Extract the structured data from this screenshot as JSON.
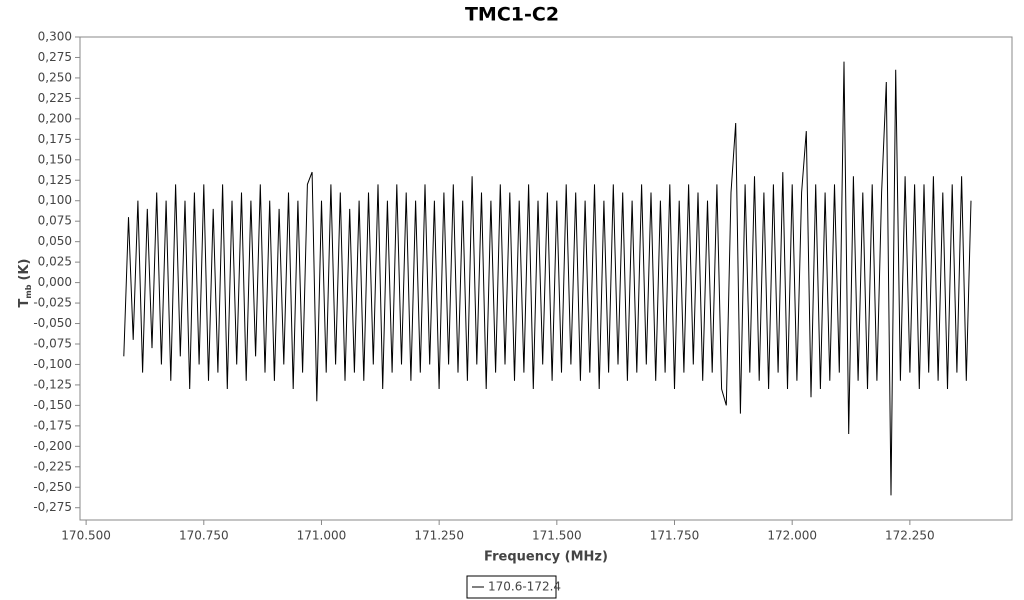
{
  "chart_data": {
    "type": "line",
    "title": "TMC1-C2",
    "x_label": "Frequency (MHz)",
    "y_label": {
      "symbol": "T",
      "subscript": "mb",
      "unit": "(K)"
    },
    "xlim": [
      170.487,
      172.467
    ],
    "ylim": [
      -0.29,
      0.3
    ],
    "xticks": [
      {
        "value": 170.5,
        "label": "170.500"
      },
      {
        "value": 170.75,
        "label": "170.750"
      },
      {
        "value": 171.0,
        "label": "171.000"
      },
      {
        "value": 171.25,
        "label": "171.250"
      },
      {
        "value": 171.5,
        "label": "171.500"
      },
      {
        "value": 171.75,
        "label": "171.750"
      },
      {
        "value": 172.0,
        "label": "172.000"
      },
      {
        "value": 172.25,
        "label": "172.250"
      }
    ],
    "yticks": [
      {
        "value": 0.3,
        "label": "0,300"
      },
      {
        "value": 0.275,
        "label": "0,275"
      },
      {
        "value": 0.25,
        "label": "0,250"
      },
      {
        "value": 0.225,
        "label": "0,225"
      },
      {
        "value": 0.2,
        "label": "0,200"
      },
      {
        "value": 0.175,
        "label": "0,175"
      },
      {
        "value": 0.15,
        "label": "0,150"
      },
      {
        "value": 0.125,
        "label": "0,125"
      },
      {
        "value": 0.1,
        "label": "0,100"
      },
      {
        "value": 0.075,
        "label": "0,075"
      },
      {
        "value": 0.05,
        "label": "0,050"
      },
      {
        "value": 0.025,
        "label": "0,025"
      },
      {
        "value": 0,
        "label": "0,000"
      },
      {
        "value": -0.025,
        "label": "-0,025"
      },
      {
        "value": -0.05,
        "label": "-0,050"
      },
      {
        "value": -0.075,
        "label": "-0,075"
      },
      {
        "value": -0.1,
        "label": "-0,100"
      },
      {
        "value": -0.125,
        "label": "-0,125"
      },
      {
        "value": -0.15,
        "label": "-0,150"
      },
      {
        "value": -0.175,
        "label": "-0,175"
      },
      {
        "value": -0.2,
        "label": "-0,200"
      },
      {
        "value": -0.225,
        "label": "-0,225"
      },
      {
        "value": -0.25,
        "label": "-0,250"
      },
      {
        "value": -0.275,
        "label": "-0,275"
      }
    ],
    "x": [
      170.58,
      170.59,
      170.6,
      170.61,
      170.62,
      170.63,
      170.64,
      170.65,
      170.66,
      170.67,
      170.68,
      170.69,
      170.7,
      170.71,
      170.72,
      170.73,
      170.74,
      170.75,
      170.76,
      170.77,
      170.78,
      170.79,
      170.8,
      170.81,
      170.82,
      170.83,
      170.84,
      170.85,
      170.86,
      170.87,
      170.88,
      170.89,
      170.9,
      170.91,
      170.92,
      170.93,
      170.94,
      170.95,
      170.96,
      170.97,
      170.98,
      170.99,
      171.0,
      171.01,
      171.02,
      171.03,
      171.04,
      171.05,
      171.06,
      171.07,
      171.08,
      171.09,
      171.1,
      171.11,
      171.12,
      171.13,
      171.14,
      171.15,
      171.16,
      171.17,
      171.18,
      171.19,
      171.2,
      171.21,
      171.22,
      171.23,
      171.24,
      171.25,
      171.26,
      171.27,
      171.28,
      171.29,
      171.3,
      171.31,
      171.32,
      171.33,
      171.34,
      171.35,
      171.36,
      171.37,
      171.38,
      171.39,
      171.4,
      171.41,
      171.42,
      171.43,
      171.44,
      171.45,
      171.46,
      171.47,
      171.48,
      171.49,
      171.5,
      171.51,
      171.52,
      171.53,
      171.54,
      171.55,
      171.56,
      171.57,
      171.58,
      171.59,
      171.6,
      171.61,
      171.62,
      171.63,
      171.64,
      171.65,
      171.66,
      171.67,
      171.68,
      171.69,
      171.7,
      171.71,
      171.72,
      171.73,
      171.74,
      171.75,
      171.76,
      171.77,
      171.78,
      171.79,
      171.8,
      171.81,
      171.82,
      171.83,
      171.84,
      171.85,
      171.86,
      171.87,
      171.88,
      171.89,
      171.9,
      171.91,
      171.92,
      171.93,
      171.94,
      171.95,
      171.96,
      171.97,
      171.98,
      171.99,
      172.0,
      172.01,
      172.02,
      172.03,
      172.04,
      172.05,
      172.06,
      172.07,
      172.08,
      172.09,
      172.1,
      172.11,
      172.12,
      172.13,
      172.14,
      172.15,
      172.16,
      172.17,
      172.18,
      172.19,
      172.2,
      172.21,
      172.22,
      172.23,
      172.24,
      172.25,
      172.26,
      172.27,
      172.28,
      172.29,
      172.3,
      172.31,
      172.32,
      172.33,
      172.34,
      172.35,
      172.36,
      172.37,
      172.38
    ],
    "series": [
      {
        "name": "170.6-172.4",
        "color": "#000000",
        "values": [
          -0.09,
          0.08,
          -0.07,
          0.1,
          -0.11,
          0.09,
          -0.08,
          0.11,
          -0.1,
          0.1,
          -0.12,
          0.12,
          -0.09,
          0.1,
          -0.13,
          0.11,
          -0.1,
          0.12,
          -0.12,
          0.09,
          -0.11,
          0.12,
          -0.13,
          0.1,
          -0.1,
          0.11,
          -0.12,
          0.1,
          -0.09,
          0.12,
          -0.11,
          0.1,
          -0.12,
          0.09,
          -0.1,
          0.11,
          -0.13,
          0.1,
          -0.11,
          0.12,
          0.135,
          -0.145,
          0.1,
          -0.11,
          0.12,
          -0.1,
          0.11,
          -0.12,
          0.09,
          -0.11,
          0.1,
          -0.12,
          0.11,
          -0.1,
          0.12,
          -0.13,
          0.1,
          -0.11,
          0.12,
          -0.1,
          0.11,
          -0.12,
          0.1,
          -0.11,
          0.12,
          -0.1,
          0.1,
          -0.13,
          0.11,
          -0.1,
          0.12,
          -0.11,
          0.1,
          -0.12,
          0.13,
          -0.1,
          0.11,
          -0.13,
          0.1,
          -0.11,
          0.12,
          -0.1,
          0.11,
          -0.12,
          0.1,
          -0.11,
          0.12,
          -0.13,
          0.1,
          -0.1,
          0.11,
          -0.12,
          0.1,
          -0.11,
          0.12,
          -0.1,
          0.11,
          -0.12,
          0.1,
          -0.11,
          0.12,
          -0.13,
          0.1,
          -0.11,
          0.12,
          -0.1,
          0.11,
          -0.12,
          0.1,
          -0.11,
          0.12,
          -0.1,
          0.11,
          -0.12,
          0.1,
          -0.11,
          0.12,
          -0.13,
          0.1,
          -0.11,
          0.12,
          -0.1,
          0.11,
          -0.12,
          0.1,
          -0.11,
          0.12,
          -0.13,
          -0.15,
          0.11,
          0.195,
          -0.16,
          0.12,
          -0.11,
          0.13,
          -0.12,
          0.11,
          -0.13,
          0.12,
          -0.11,
          0.135,
          -0.13,
          0.12,
          -0.12,
          0.11,
          0.185,
          -0.14,
          0.12,
          -0.13,
          0.11,
          -0.12,
          0.12,
          -0.11,
          0.27,
          -0.185,
          0.13,
          -0.12,
          0.11,
          -0.13,
          0.12,
          -0.12,
          0.11,
          0.245,
          -0.26,
          0.26,
          -0.12,
          0.13,
          -0.11,
          0.12,
          -0.13,
          0.12,
          -0.11,
          0.13,
          -0.12,
          0.11,
          -0.13,
          0.12,
          -0.11,
          0.13,
          -0.12,
          0.1
        ]
      }
    ]
  }
}
